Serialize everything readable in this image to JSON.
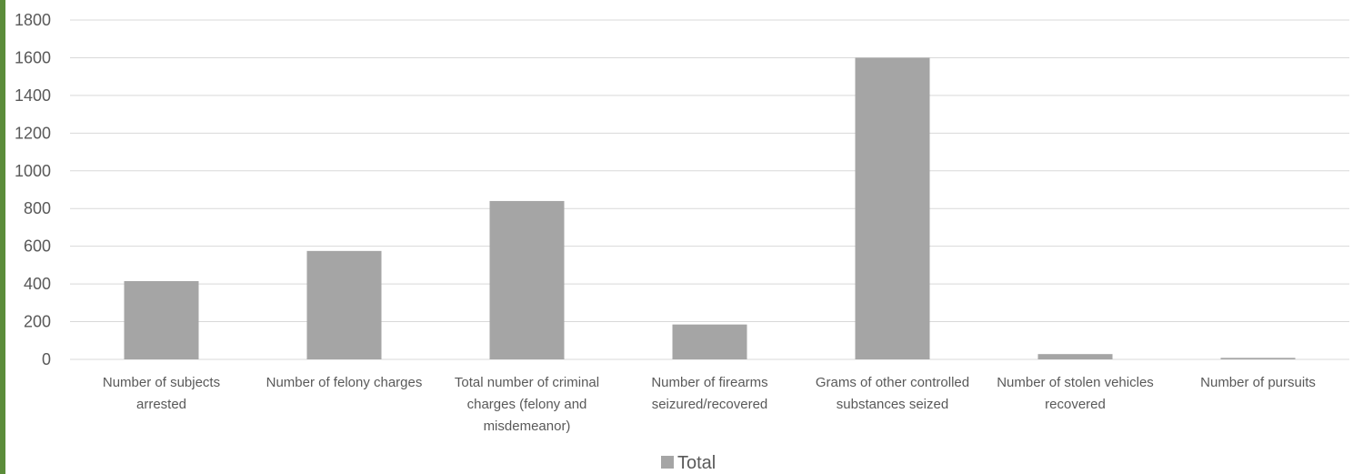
{
  "chart_data": {
    "type": "bar",
    "categories": [
      [
        "Number of subjects",
        "arrested"
      ],
      [
        "Number of felony charges"
      ],
      [
        "Total number of criminal",
        "charges (felony and",
        "misdemeanor)"
      ],
      [
        "Number of firearms",
        "seizured/recovered"
      ],
      [
        "Grams of other controlled",
        "substances seized"
      ],
      [
        "Number of stolen vehicles",
        "recovered"
      ],
      [
        "Number of pursuits"
      ]
    ],
    "series": [
      {
        "name": "Total",
        "values": [
          415,
          575,
          840,
          185,
          1600,
          28,
          8
        ]
      }
    ],
    "ylim": [
      0,
      1800
    ],
    "yticks": [
      0,
      200,
      400,
      600,
      800,
      1000,
      1200,
      1400,
      1600,
      1800
    ],
    "grid": true,
    "legend_position": "bottom",
    "colors": {
      "bar": "#a5a5a5",
      "gridline": "#d9d9d9",
      "axis_text": "#595959",
      "left_edge": "#5b8c3a"
    }
  }
}
